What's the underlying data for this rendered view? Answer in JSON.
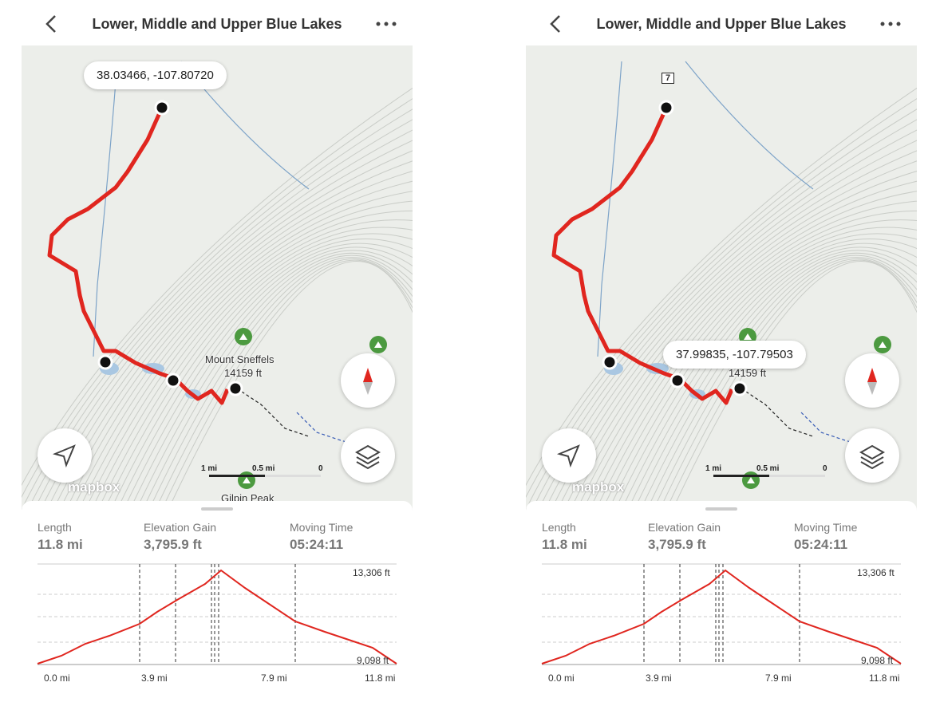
{
  "screens": [
    {
      "header": {
        "title": "Lower, Middle and Upper Blue Lakes"
      },
      "map": {
        "coordinate_popup": "38.03466, -107.80720",
        "peak_name": "Mount Sneffels",
        "peak_elevation": "14159 ft",
        "other_peak": "Gilpin Peak",
        "scale": [
          "1 mi",
          "0.5 mi",
          "0"
        ],
        "attribution": "mapbox"
      },
      "stats": [
        {
          "label": "Length",
          "value": "11.8 mi"
        },
        {
          "label": "Elevation Gain",
          "value": "3,795.9 ft"
        },
        {
          "label": "Moving Time",
          "value": "05:24:11"
        }
      ],
      "profile": {
        "y_labels": [
          "13,306 ft",
          "9,098 ft"
        ],
        "x_labels": [
          "0.0 mi",
          "3.9 mi",
          "7.9 mi",
          "11.8 mi"
        ]
      }
    },
    {
      "header": {
        "title": "Lower, Middle and Upper Blue Lakes"
      },
      "map": {
        "coordinate_popup": "37.99835, -107.79503",
        "road_sign": "7",
        "peak_elevation": "14159 ft",
        "scale": [
          "1 mi",
          "0.5 mi",
          "0"
        ],
        "attribution": "mapbox"
      },
      "stats": [
        {
          "label": "Length",
          "value": "11.8 mi"
        },
        {
          "label": "Elevation Gain",
          "value": "3,795.9 ft"
        },
        {
          "label": "Moving Time",
          "value": "05:24:11"
        }
      ],
      "profile": {
        "y_labels": [
          "13,306 ft",
          "9,098 ft"
        ],
        "x_labels": [
          "0.0 mi",
          "3.9 mi",
          "7.9 mi",
          "11.8 mi"
        ]
      }
    }
  ]
}
